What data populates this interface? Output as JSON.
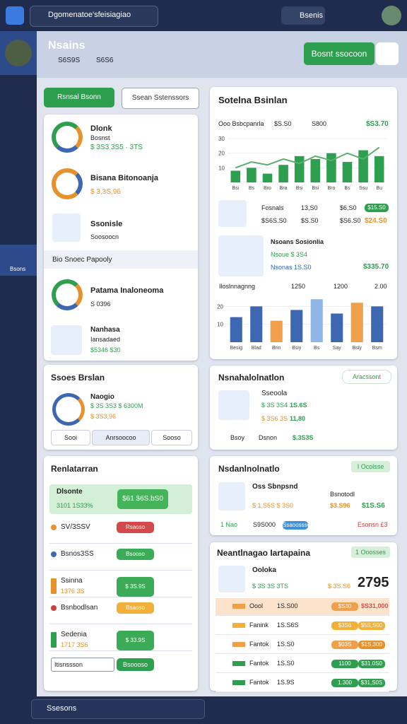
{
  "topbar": {
    "search": "Dgomenatoe'sfeisiagiao",
    "button": "Bsenis"
  },
  "header": {
    "title": "Nsains",
    "stat1": "S6S9S",
    "stat2": "S6S6",
    "button": "Bosnt ssocoon"
  },
  "sidebar": {
    "active": "Bsons"
  },
  "left": {
    "btn1": "Rsnsal Bsonn",
    "btn2": "Ssean Sstenssors",
    "items": [
      {
        "title": "Dlonk",
        "sub": "Bosnst",
        "value": "$ 3S3 3S5 · 3TS"
      },
      {
        "title": "Bisana Bitonoanja",
        "value": "$ 3,3S,96"
      },
      {
        "title": "Ssonisle",
        "sub": "Soosoocn"
      }
    ],
    "filter": "Bio Snoec Papooly",
    "items2": [
      {
        "title": "Patama Inaloneoma",
        "sub": "S 0396"
      },
      {
        "title": "Nanhasa",
        "sub": "Iansadaed",
        "value": "$5346 $30"
      }
    ],
    "gauge_card": {
      "title": "Ssoes Brslan",
      "name": "Naogio",
      "value": "$ 3S 3S3 $ 6300M",
      "sub": "$ 3S3,96",
      "tabs": [
        "Sooi",
        "Anrsoocoo",
        "Sooso"
      ]
    },
    "rel_card": {
      "title": "Renlatarran",
      "highlight": "Dlsonte",
      "highlight_sub": "3101 1S33%",
      "highlight_value": "$61 $6S.bS0",
      "rows": [
        {
          "name": "SV/3SSV",
          "btn": "Rsaoso"
        },
        {
          "name": "Bsnos3SS",
          "btn": "Bsooso"
        },
        {
          "name": "Ssinna",
          "sub": "1376 3S",
          "btn": "$ 3S.9S"
        },
        {
          "name": "Bsnbodlsan",
          "btn": "Bsaoso"
        },
        {
          "name": "Sedenia",
          "sub": "1717 3S6",
          "btn": "$ 33.9S"
        }
      ],
      "input": "Itisnssson",
      "submit": "Bsoooso"
    }
  },
  "right": {
    "chart_card": {
      "title": "Sotelna Bsinlan",
      "head": [
        "Ooo Bsbcpanrla",
        "$S.S0",
        "S800",
        "$S3.70"
      ],
      "row1": [
        "Fosnals",
        "13,S0",
        "$6,S0",
        "$15.S0"
      ],
      "row2": [
        "$S6S.S0",
        "$S.S0",
        "$S6.S0",
        "$24.S0"
      ],
      "block": [
        "Nsoans Sosionlia",
        "Nsoue $ 3S4",
        "Nsonas 1S.S0",
        "$335.70"
      ],
      "chart2_head": [
        "Iloslnnagnng",
        "1250",
        "1200",
        "2.00"
      ]
    },
    "card2": {
      "title": "Nsnahalolnatlon",
      "badge": "Aracssont",
      "name": "Sseoola",
      "l1": "$ 3S 3S4",
      "v1": "1S.6S",
      "l2": "$ 3S6 3S",
      "v2": "11,80",
      "f1": "Bsoy",
      "f2": "Dsnon",
      "f3": "$.3S3S"
    },
    "card3": {
      "title": "Nsdanlnolnatlo",
      "badge": "I Ocolsse",
      "name": "Oss Sbnpsnd",
      "sub": "Bsnotodl",
      "l1": "$ 1,S5S $ 3S0",
      "v1": "$3.S96",
      "v2": "$1S.S6",
      "f1": "1 Nao",
      "f2": "S9S000",
      "f3": "Ssaoossso",
      "f4": "Esonsn £3"
    },
    "card4": {
      "title": "Neantlnagao Iartapaina",
      "badge": "1 Ooosses",
      "name": "Ooloka",
      "l1": "$ 3S 3S 3TS",
      "v1": "$ 3S.S6",
      "big": "2795",
      "rows": [
        [
          "Oool",
          "1S.S00",
          "$S30",
          "$S31,000"
        ],
        [
          "Fanink",
          "1S.S6S",
          "$3S6",
          "$5S,S00"
        ],
        [
          "Fantok",
          "1S.S0",
          "$03S",
          "$1S.300"
        ],
        [
          "Fantok",
          "1S.S0",
          "1100",
          "$31.0S0"
        ],
        [
          "Fantok",
          "1S.9S",
          "1.300",
          "$31,S0S"
        ]
      ]
    }
  },
  "bottombar": {
    "select": "Ssesons"
  },
  "chart_data": [
    {
      "type": "bar",
      "categories": [
        "Bsi",
        "Bs",
        "Bro",
        "Bra",
        "Bsi",
        "Bsi",
        "Bro",
        "Bs",
        "Ssu",
        "Bu"
      ],
      "values": [
        8,
        10,
        6,
        12,
        18,
        16,
        20,
        14,
        22,
        18
      ],
      "color": "#2e9e4f",
      "line_values": [
        10,
        14,
        12,
        16,
        13,
        18,
        15,
        20,
        16,
        24
      ],
      "line_color": "#5cae6e",
      "ylim": [
        0,
        30
      ],
      "yticks": [
        10,
        20,
        30
      ]
    },
    {
      "type": "bar",
      "categories": [
        "Besig",
        "Blad",
        "Brin",
        "Bsiy",
        "Bs",
        "Say",
        "Bsiy",
        "Bsm"
      ],
      "values": [
        14,
        20,
        12,
        18,
        24,
        16,
        22,
        20
      ],
      "colors": [
        "#3e67b1",
        "#3e67b1",
        "#f0a04b",
        "#3e67b1",
        "#8fb6e6",
        "#3e67b1",
        "#f0a04b",
        "#3e67b1"
      ],
      "ylim": [
        0,
        30
      ],
      "yticks": [
        10,
        20
      ]
    }
  ]
}
